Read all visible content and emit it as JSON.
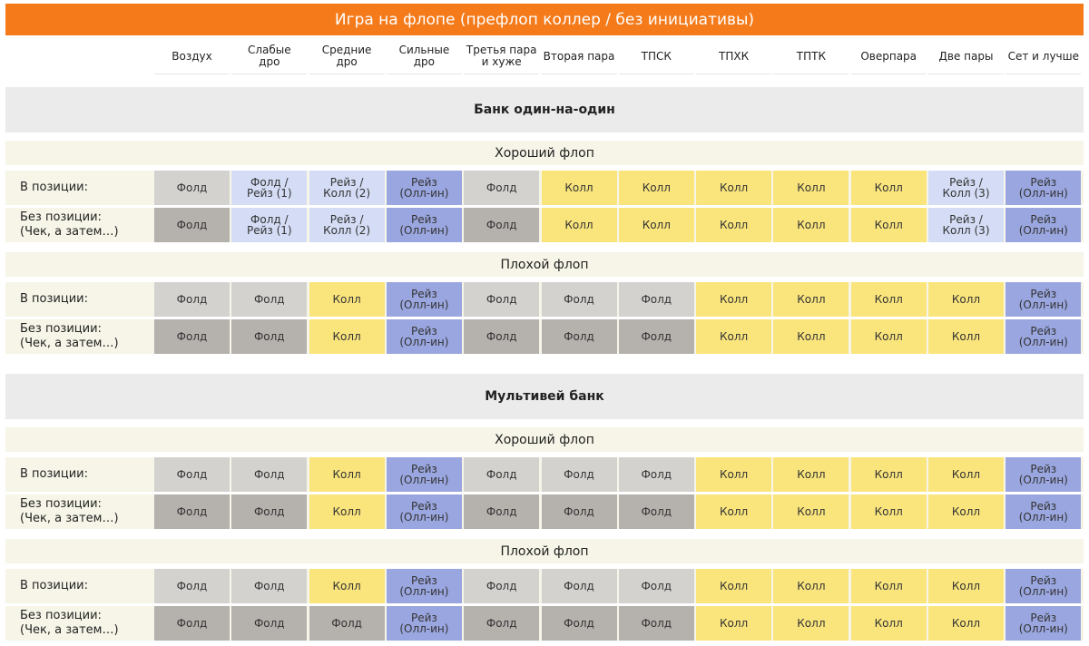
{
  "title": "Игра на флопе (префлоп коллер / без инициативы)",
  "columns": [
    "Воздух",
    "Слабые дро",
    "Средние дро",
    "Сильные дро",
    "Третья пара и хуже",
    "Вторая пара",
    "ТПСК",
    "ТПХК",
    "ТПТК",
    "Оверпара",
    "Две пары",
    "Сет и лучше"
  ],
  "column_display": [
    "Воздух",
    "Слабые\nдро",
    "Средние\nдро",
    "Сильные\nдро",
    "Третья пара\nи хуже",
    "Вторая пара",
    "ТПСК",
    "ТПХК",
    "ТПТК",
    "Оверпара",
    "Две пары",
    "Сет и лучше"
  ],
  "legend_colors": {
    "fold_in_position": "#d4d2cf",
    "fold_out_of_position": "#b5b1ad",
    "call": "#fae57d",
    "raise": "#9aa6df",
    "mixed": "#d4ddf5",
    "header_bar": "#f47a1a"
  },
  "sections": [
    {
      "title": "Банк один-на-один",
      "groups": [
        {
          "title": "Хороший флоп",
          "rows": [
            {
              "label_line1": "В позиции:",
              "label_line2": "",
              "cells": [
                {
                  "text": "Фолд",
                  "kind": "fold-light"
                },
                {
                  "text": "Фолд /\nРейз (1)",
                  "kind": "mixed"
                },
                {
                  "text": "Рейз /\nКолл (2)",
                  "kind": "mixed"
                },
                {
                  "text": "Рейз\n(Олл-ин)",
                  "kind": "raise"
                },
                {
                  "text": "Фолд",
                  "kind": "fold-light"
                },
                {
                  "text": "Колл",
                  "kind": "call"
                },
                {
                  "text": "Колл",
                  "kind": "call"
                },
                {
                  "text": "Колл",
                  "kind": "call"
                },
                {
                  "text": "Колл",
                  "kind": "call"
                },
                {
                  "text": "Колл",
                  "kind": "call"
                },
                {
                  "text": "Рейз /\nКолл (3)",
                  "kind": "mixed"
                },
                {
                  "text": "Рейз\n(Олл-ин)",
                  "kind": "raise"
                }
              ]
            },
            {
              "label_line1": "Без позиции:",
              "label_line2": "(Чек, а затем…)",
              "cells": [
                {
                  "text": "Фолд",
                  "kind": "fold-dark"
                },
                {
                  "text": "Фолд /\nРейз (1)",
                  "kind": "mixed"
                },
                {
                  "text": "Рейз /\nКолл (2)",
                  "kind": "mixed"
                },
                {
                  "text": "Рейз\n(Олл-ин)",
                  "kind": "raise"
                },
                {
                  "text": "Фолд",
                  "kind": "fold-dark"
                },
                {
                  "text": "Колл",
                  "kind": "call"
                },
                {
                  "text": "Колл",
                  "kind": "call"
                },
                {
                  "text": "Колл",
                  "kind": "call"
                },
                {
                  "text": "Колл",
                  "kind": "call"
                },
                {
                  "text": "Колл",
                  "kind": "call"
                },
                {
                  "text": "Рейз /\nКолл (3)",
                  "kind": "mixed"
                },
                {
                  "text": "Рейз\n(Олл-ин)",
                  "kind": "raise"
                }
              ]
            }
          ]
        },
        {
          "title": "Плохой флоп",
          "rows": [
            {
              "label_line1": "В позиции:",
              "label_line2": "",
              "cells": [
                {
                  "text": "Фолд",
                  "kind": "fold-light"
                },
                {
                  "text": "Фолд",
                  "kind": "fold-light"
                },
                {
                  "text": "Колл",
                  "kind": "call"
                },
                {
                  "text": "Рейз\n(Олл-ин)",
                  "kind": "raise"
                },
                {
                  "text": "Фолд",
                  "kind": "fold-light"
                },
                {
                  "text": "Фолд",
                  "kind": "fold-light"
                },
                {
                  "text": "Фолд",
                  "kind": "fold-light"
                },
                {
                  "text": "Колл",
                  "kind": "call"
                },
                {
                  "text": "Колл",
                  "kind": "call"
                },
                {
                  "text": "Колл",
                  "kind": "call"
                },
                {
                  "text": "Колл",
                  "kind": "call"
                },
                {
                  "text": "Рейз\n(Олл-ин)",
                  "kind": "raise"
                }
              ]
            },
            {
              "label_line1": "Без позиции:",
              "label_line2": "(Чек, а затем…)",
              "cells": [
                {
                  "text": "Фолд",
                  "kind": "fold-dark"
                },
                {
                  "text": "Фолд",
                  "kind": "fold-dark"
                },
                {
                  "text": "Колл",
                  "kind": "call"
                },
                {
                  "text": "Рейз\n(Олл-ин)",
                  "kind": "raise"
                },
                {
                  "text": "Фолд",
                  "kind": "fold-dark"
                },
                {
                  "text": "Фолд",
                  "kind": "fold-dark"
                },
                {
                  "text": "Фолд",
                  "kind": "fold-dark"
                },
                {
                  "text": "Колл",
                  "kind": "call"
                },
                {
                  "text": "Колл",
                  "kind": "call"
                },
                {
                  "text": "Колл",
                  "kind": "call"
                },
                {
                  "text": "Колл",
                  "kind": "call"
                },
                {
                  "text": "Рейз\n(Олл-ин)",
                  "kind": "raise"
                }
              ]
            }
          ]
        }
      ]
    },
    {
      "title": "Мультивей банк",
      "groups": [
        {
          "title": "Хороший флоп",
          "rows": [
            {
              "label_line1": "В позиции:",
              "label_line2": "",
              "cells": [
                {
                  "text": "Фолд",
                  "kind": "fold-light"
                },
                {
                  "text": "Фолд",
                  "kind": "fold-light"
                },
                {
                  "text": "Колл",
                  "kind": "call"
                },
                {
                  "text": "Рейз\n(Олл-ин)",
                  "kind": "raise"
                },
                {
                  "text": "Фолд",
                  "kind": "fold-light"
                },
                {
                  "text": "Фолд",
                  "kind": "fold-light"
                },
                {
                  "text": "Фолд",
                  "kind": "fold-light"
                },
                {
                  "text": "Колл",
                  "kind": "call"
                },
                {
                  "text": "Колл",
                  "kind": "call"
                },
                {
                  "text": "Колл",
                  "kind": "call"
                },
                {
                  "text": "Колл",
                  "kind": "call"
                },
                {
                  "text": "Рейз\n(Олл-ин)",
                  "kind": "raise"
                }
              ]
            },
            {
              "label_line1": "Без позиции:",
              "label_line2": "(Чек, а затем…)",
              "cells": [
                {
                  "text": "Фолд",
                  "kind": "fold-dark"
                },
                {
                  "text": "Фолд",
                  "kind": "fold-dark"
                },
                {
                  "text": "Колл",
                  "kind": "call"
                },
                {
                  "text": "Рейз\n(Олл-ин)",
                  "kind": "raise"
                },
                {
                  "text": "Фолд",
                  "kind": "fold-dark"
                },
                {
                  "text": "Фолд",
                  "kind": "fold-dark"
                },
                {
                  "text": "Фолд",
                  "kind": "fold-dark"
                },
                {
                  "text": "Колл",
                  "kind": "call"
                },
                {
                  "text": "Колл",
                  "kind": "call"
                },
                {
                  "text": "Колл",
                  "kind": "call"
                },
                {
                  "text": "Колл",
                  "kind": "call"
                },
                {
                  "text": "Рейз\n(Олл-ин)",
                  "kind": "raise"
                }
              ]
            }
          ]
        },
        {
          "title": "Плохой флоп",
          "rows": [
            {
              "label_line1": "В позиции:",
              "label_line2": "",
              "cells": [
                {
                  "text": "Фолд",
                  "kind": "fold-light"
                },
                {
                  "text": "Фолд",
                  "kind": "fold-light"
                },
                {
                  "text": "Колл",
                  "kind": "call"
                },
                {
                  "text": "Рейз\n(Олл-ин)",
                  "kind": "raise"
                },
                {
                  "text": "Фолд",
                  "kind": "fold-light"
                },
                {
                  "text": "Фолд",
                  "kind": "fold-light"
                },
                {
                  "text": "Фолд",
                  "kind": "fold-light"
                },
                {
                  "text": "Колл",
                  "kind": "call"
                },
                {
                  "text": "Колл",
                  "kind": "call"
                },
                {
                  "text": "Колл",
                  "kind": "call"
                },
                {
                  "text": "Колл",
                  "kind": "call"
                },
                {
                  "text": "Рейз\n(Олл-ин)",
                  "kind": "raise"
                }
              ]
            },
            {
              "label_line1": "Без позиции:",
              "label_line2": "(Чек, а затем…)",
              "cells": [
                {
                  "text": "Фолд",
                  "kind": "fold-dark"
                },
                {
                  "text": "Фолд",
                  "kind": "fold-dark"
                },
                {
                  "text": "Фолд",
                  "kind": "fold-dark"
                },
                {
                  "text": "Рейз\n(Олл-ин)",
                  "kind": "raise"
                },
                {
                  "text": "Фолд",
                  "kind": "fold-dark"
                },
                {
                  "text": "Фолд",
                  "kind": "fold-dark"
                },
                {
                  "text": "Фолд",
                  "kind": "fold-dark"
                },
                {
                  "text": "Колл",
                  "kind": "call"
                },
                {
                  "text": "Колл",
                  "kind": "call"
                },
                {
                  "text": "Колл",
                  "kind": "call"
                },
                {
                  "text": "Колл",
                  "kind": "call"
                },
                {
                  "text": "Рейз\n(Олл-ин)",
                  "kind": "raise"
                }
              ]
            }
          ]
        }
      ]
    }
  ]
}
